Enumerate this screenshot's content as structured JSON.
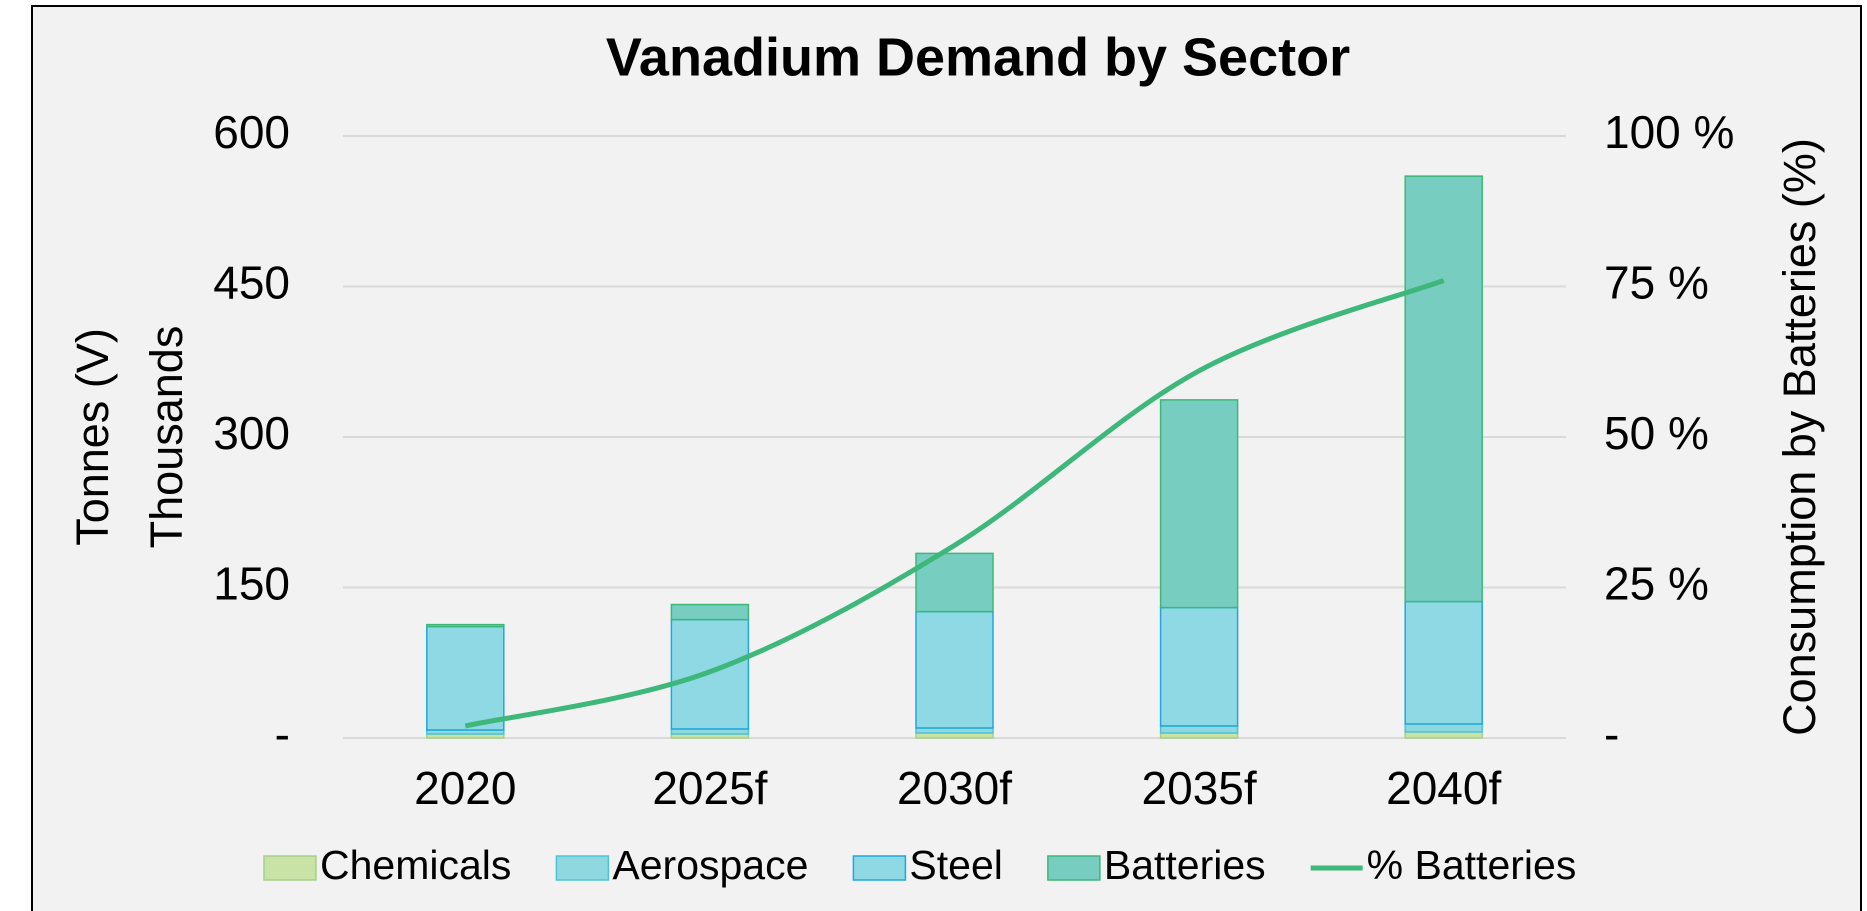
{
  "chart_data": {
    "type": "bar",
    "stacked": true,
    "title": "Vanadium Demand by Sector",
    "y_label": "Tonnes (V)",
    "y_unit": "Thousands",
    "y2_label": "Consumption by Batteries (%)",
    "categories": [
      "2020",
      "2025f",
      "2030f",
      "2035f",
      "2040f"
    ],
    "series": [
      {
        "name": "Chemicals",
        "color": "#c9e2a6",
        "edge": "#a6d08a",
        "values": [
          4,
          4,
          5,
          5,
          6
        ]
      },
      {
        "name": "Aerospace",
        "color": "#8fd8e0",
        "edge": "#4cc4d8",
        "values": [
          4,
          5,
          5,
          7,
          8
        ]
      },
      {
        "name": "Steel",
        "color": "#8ed9e3",
        "edge": "#1ea7e0",
        "values": [
          103,
          109,
          116,
          118,
          122
        ]
      },
      {
        "name": "Batteries",
        "color": "#78cdc1",
        "edge": "#3db87a",
        "values": [
          2,
          15,
          58,
          207,
          424
        ]
      },
      {
        "name": "% Batteries",
        "type": "line",
        "axis": "y2",
        "color": "#3db87a",
        "values": [
          2,
          11,
          32,
          61,
          76
        ]
      }
    ],
    "ylim": [
      0,
      600
    ],
    "yticks": [
      {
        "value": 0,
        "label": "-"
      },
      150,
      300,
      450,
      600
    ],
    "y2lim": [
      0,
      100
    ],
    "y2ticks": [
      {
        "value": 0,
        "label": "-"
      },
      {
        "value": 25,
        "label": "25 %"
      },
      {
        "value": 50,
        "label": "50 %"
      },
      {
        "value": 75,
        "label": "75 %"
      },
      {
        "value": 100,
        "label": "100 %"
      }
    ],
    "grid": true,
    "legend": "bottom"
  }
}
